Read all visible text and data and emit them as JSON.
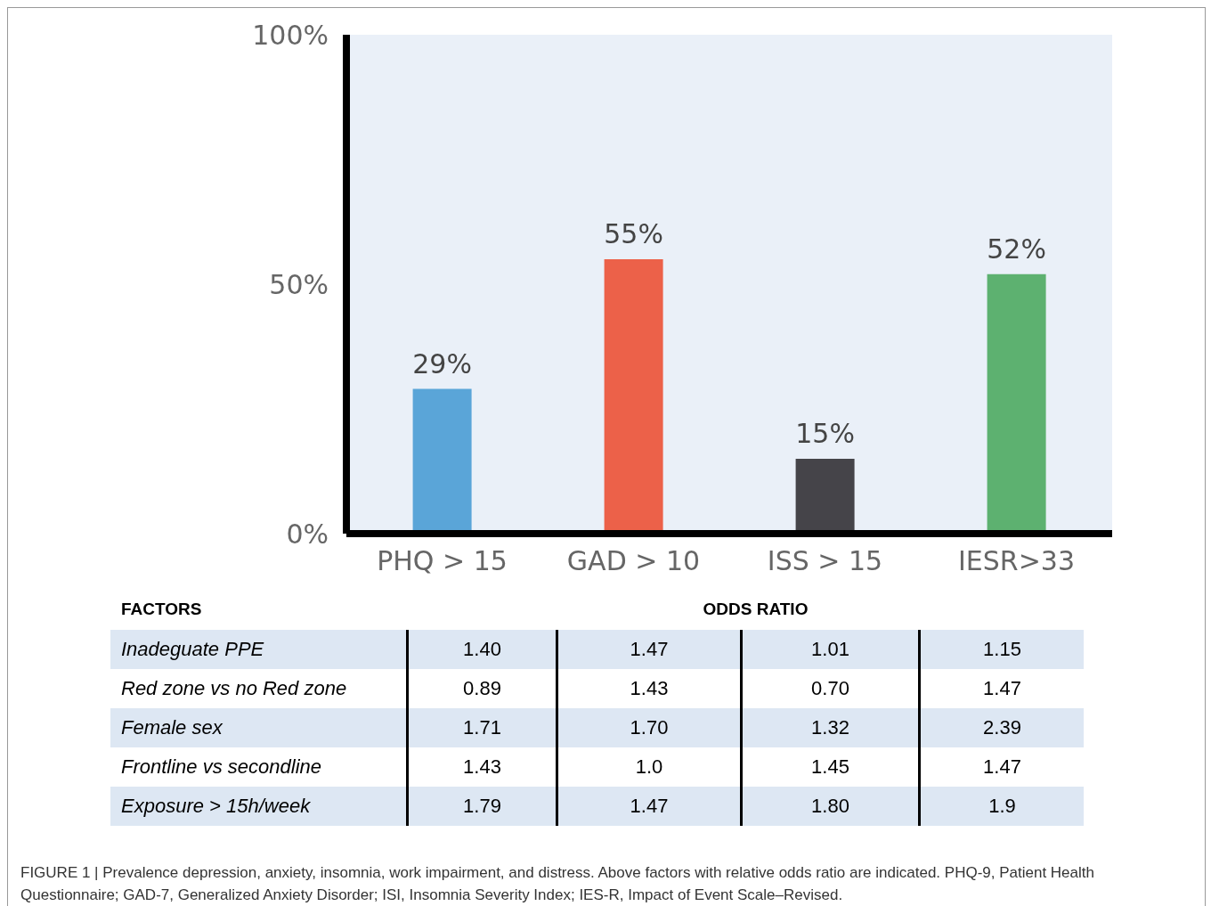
{
  "chart_data": [
    {
      "type": "bar",
      "categories": [
        "PHQ > 15",
        "GAD > 10",
        "ISS > 15",
        "IESR>33"
      ],
      "values": [
        29,
        55,
        15,
        52
      ],
      "colors": [
        "#5aa5d8",
        "#ec6149",
        "#454449",
        "#5db170"
      ],
      "value_labels": [
        "29%",
        "55%",
        "15%",
        "52%"
      ],
      "ylim": [
        0,
        100
      ],
      "yticks": [
        {
          "value": 0,
          "label": "0%"
        },
        {
          "value": 50,
          "label": "50%"
        },
        {
          "value": 100,
          "label": "100%"
        }
      ],
      "annotations": [
        "FIGURE 1 | Prevalence depression, anxiety, insomnia, work impairment, and distress. Above factors with relative odds ratio are indicated. PHQ-9, Patient Health Questionnaire; GAD-7, Generalized Anxiety Disorder; ISI, Insomnia Severity Index; IES-R, Impact of Event Scale–Revised."
      ]
    },
    {
      "type": "heatmap",
      "title": "ODDS RATIO",
      "ylabel": "FACTORS",
      "categories": [
        null,
        null,
        null,
        null
      ],
      "y_categories": [
        "Inadeguate PPE",
        "Red zone vs no Red zone",
        "Female sex",
        "Frontline vs secondline",
        "Exposure > 15h/week"
      ],
      "cells": [
        [
          1.4,
          1.47,
          1.01,
          1.15
        ],
        [
          0.89,
          1.43,
          0.7,
          1.47
        ],
        [
          1.71,
          1.7,
          1.32,
          2.39
        ],
        [
          1.43,
          1.0,
          1.45,
          1.47
        ],
        [
          1.79,
          1.47,
          1.8,
          1.9
        ]
      ],
      "cell_labels": [
        [
          "1.40",
          "1.47",
          "1.01",
          "1.15"
        ],
        [
          "0.89",
          "1.43",
          "0.70",
          "1.47"
        ],
        [
          "1.71",
          "1.70",
          "1.32",
          "2.39"
        ],
        [
          "1.43",
          "1.0",
          "1.45",
          "1.47"
        ],
        [
          "1.79",
          "1.47",
          "1.80",
          "1.9"
        ]
      ]
    }
  ]
}
